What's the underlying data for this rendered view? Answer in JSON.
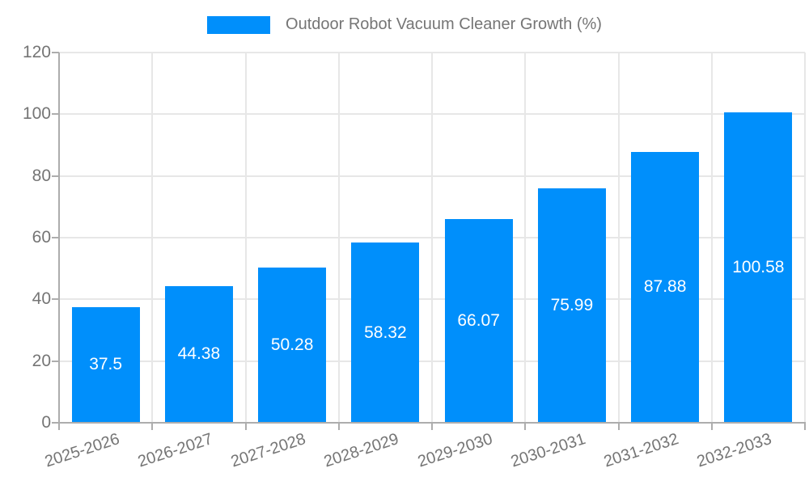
{
  "chart_data": {
    "type": "bar",
    "title": "",
    "legend": {
      "label": "Outdoor Robot Vacuum Cleaner Growth (%)",
      "position": "top"
    },
    "categories": [
      "2025-2026",
      "2026-2027",
      "2027-2028",
      "2028-2029",
      "2029-2030",
      "2030-2031",
      "2031-2032",
      "2032-2033"
    ],
    "values": [
      37.5,
      44.38,
      50.28,
      58.32,
      66.07,
      75.99,
      87.88,
      100.58
    ],
    "value_labels": [
      "37.5",
      "44.38",
      "50.28",
      "58.32",
      "66.07",
      "75.99",
      "87.88",
      "100.58"
    ],
    "xlabel": "",
    "ylabel": "",
    "ylim": [
      0,
      120
    ],
    "yticks": [
      0,
      20,
      40,
      60,
      80,
      100,
      120
    ],
    "grid": true,
    "legend_marker": "rectangle",
    "colors": {
      "bar": "#008FFB",
      "data_label": "#FFFFFF",
      "tick_label": "#757575",
      "legend_text": "#757575",
      "grid_line": "#E7E7E7",
      "axis_line": "#ADADAD",
      "background": "#FFFFFF"
    }
  }
}
